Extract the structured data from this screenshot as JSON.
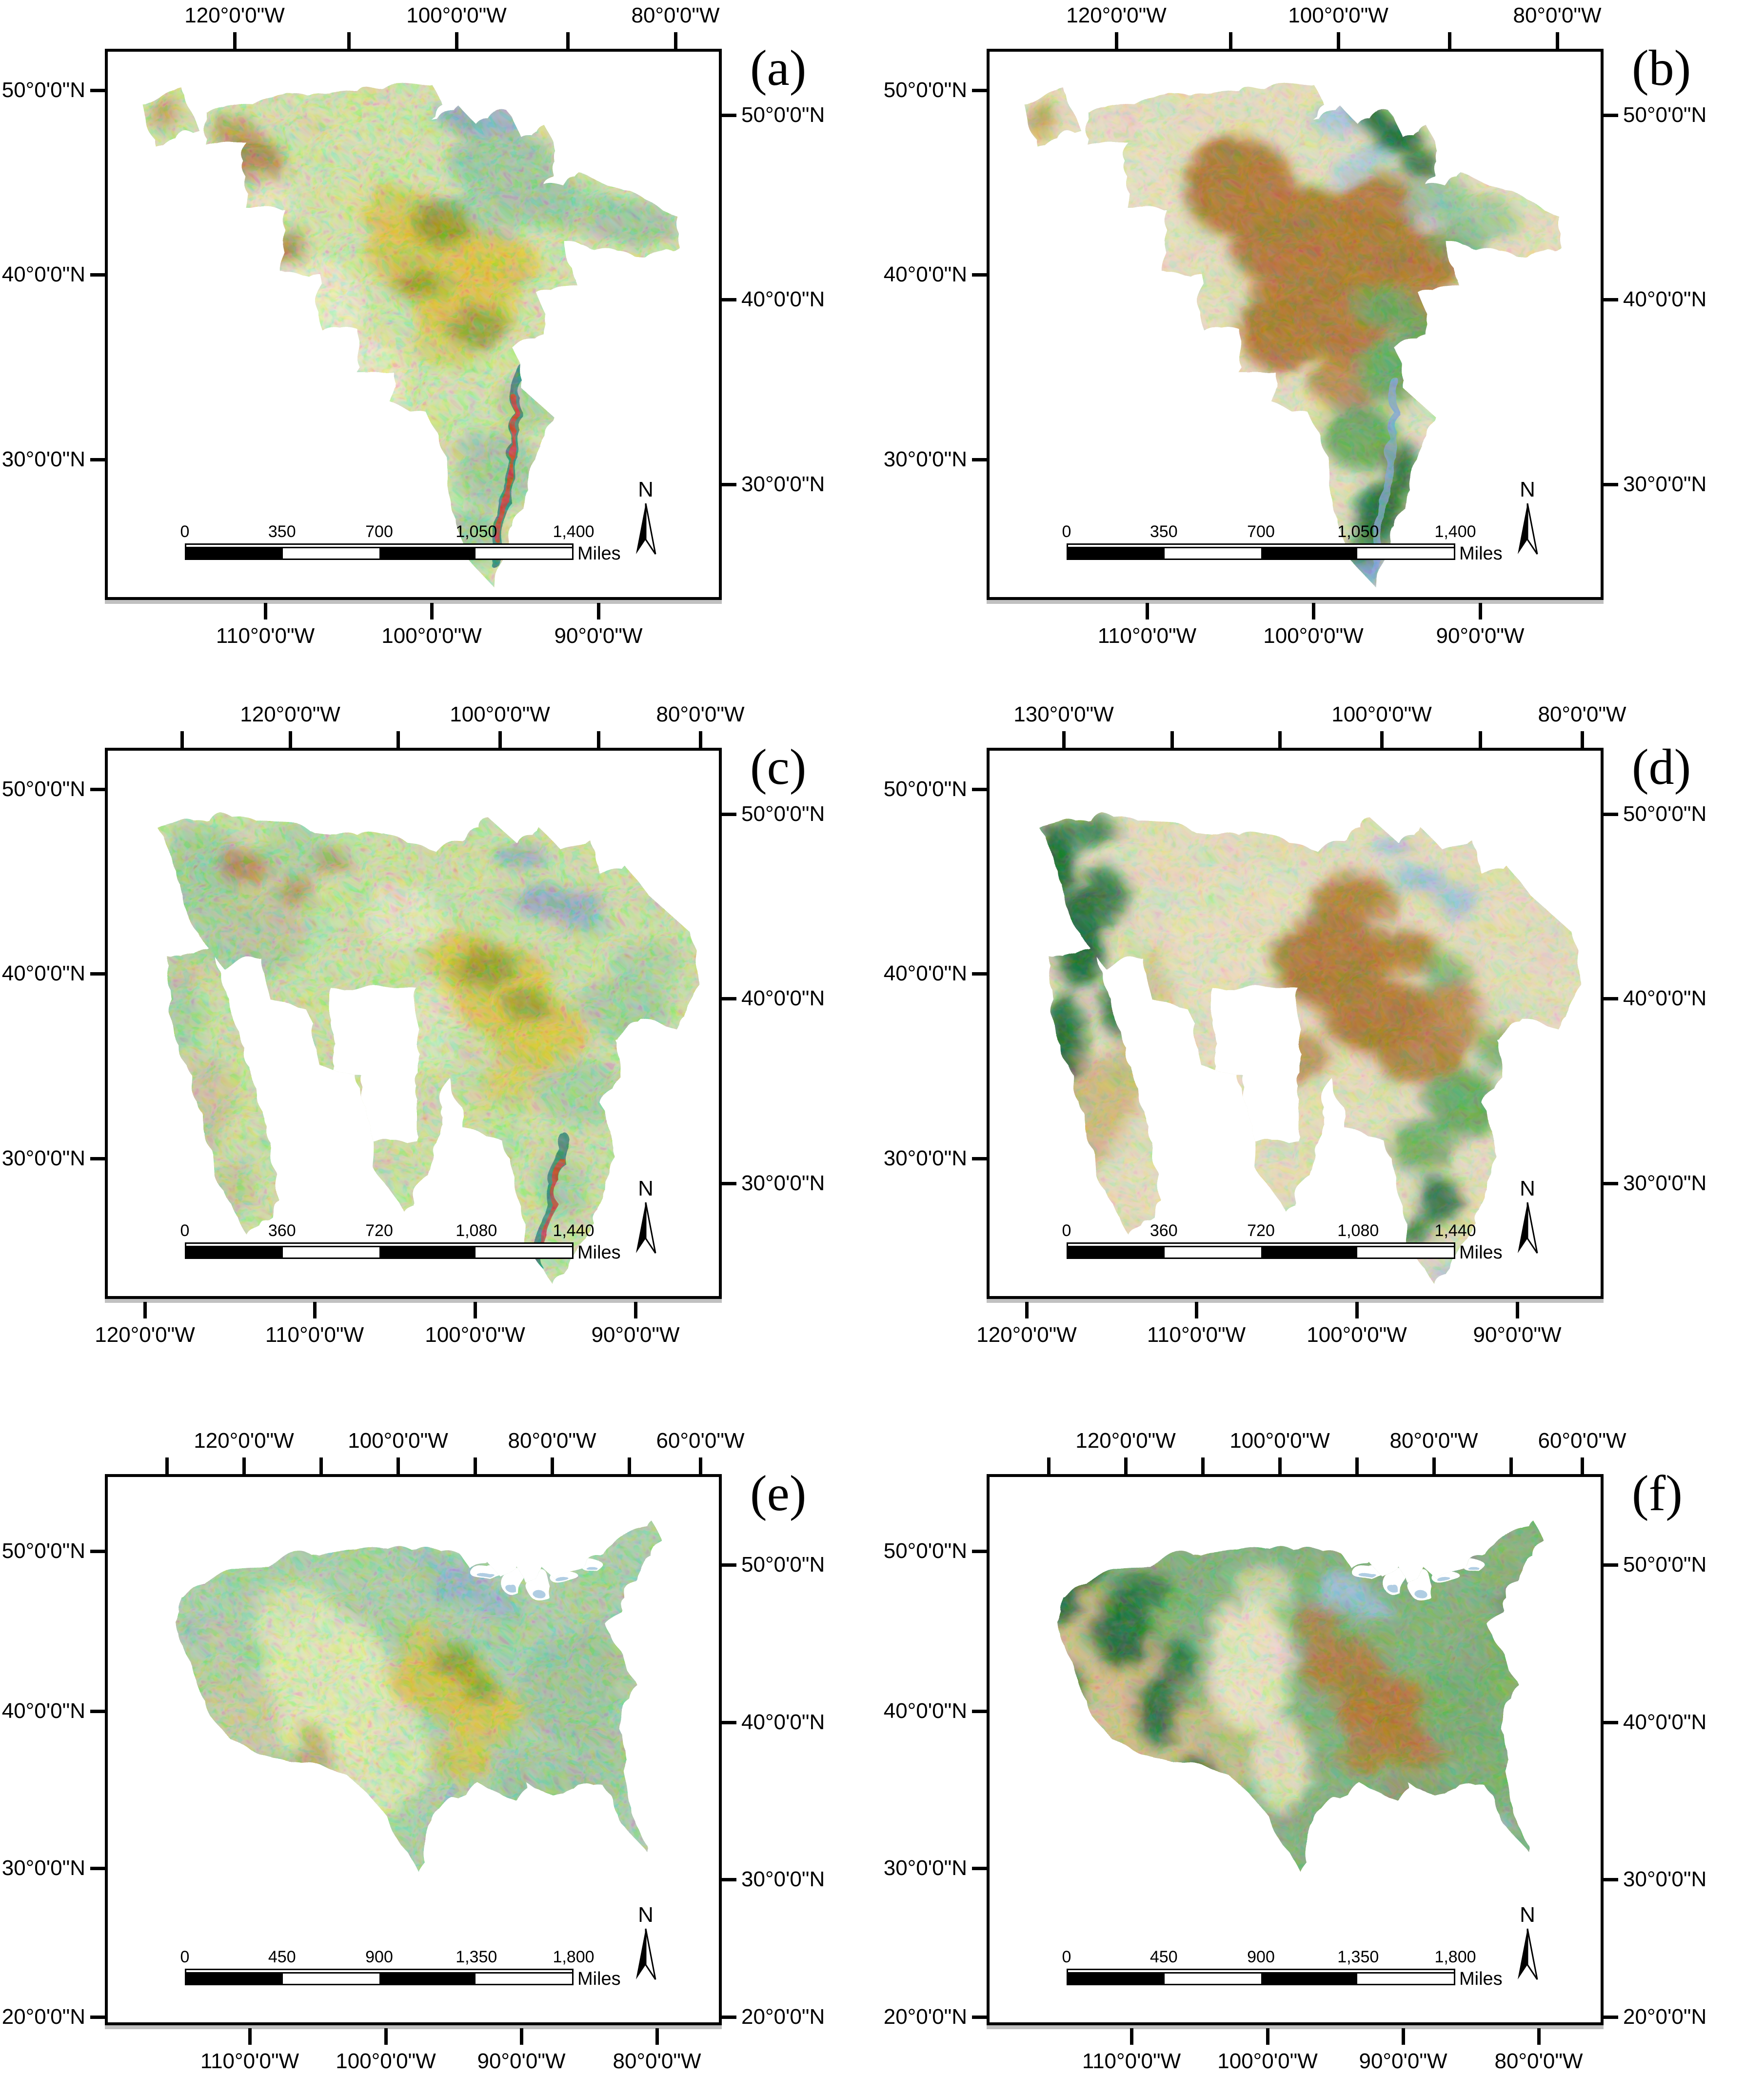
{
  "figure": {
    "background": "#ffffff"
  },
  "panels": [
    {
      "id": "a",
      "label": "(a)",
      "axes": {
        "top_labels": [
          "120°0'0\"W",
          "100°0'0\"W",
          "80°0'0\"W"
        ],
        "bottom_labels": [
          "110°0'0\"W",
          "100°0'0\"W",
          "90°0'0\"W"
        ],
        "left_labels": [
          "50°0'0\"N",
          "40°0'0\"N",
          "30°0'0\"N"
        ],
        "right_labels": [
          "50°0'0\"N",
          "40°0'0\"N",
          "30°0'0\"N"
        ]
      },
      "scalebar_ticks": [
        "0",
        "350",
        "700",
        "1,050",
        "1,400"
      ],
      "scalebar_unit": "Miles",
      "north_label": "N",
      "map_theme": {
        "base": "#d8e9a9",
        "accents": {
          "sage": "#9fcc9e",
          "yellow": "#e0c63c",
          "olive": "#8d9b26",
          "brown": "#a96f2b",
          "cream": "#eef3c8",
          "bluegray": "#8da9c4",
          "teal": "#2e7f6f",
          "red": "#d13a2e"
        }
      }
    },
    {
      "id": "b",
      "label": "(b)",
      "axes": {
        "top_labels": [
          "120°0'0\"W",
          "100°0'0\"W",
          "80°0'0\"W"
        ],
        "bottom_labels": [
          "110°0'0\"W",
          "100°0'0\"W",
          "90°0'0\"W"
        ],
        "left_labels": [
          "50°0'0\"N",
          "40°0'0\"N",
          "30°0'0\"N"
        ],
        "right_labels": [
          "50°0'0\"N",
          "40°0'0\"N",
          "30°0'0\"N"
        ]
      },
      "scalebar_ticks": [
        "0",
        "350",
        "700",
        "1,050",
        "1,400"
      ],
      "scalebar_unit": "Miles",
      "north_label": "N",
      "map_theme": {
        "base": "#e9e3bd",
        "accents": {
          "brown": "#b1772e",
          "cream": "#ece6c4",
          "green": "#67a95f",
          "darkgreen": "#1d6b34",
          "lightblue": "#a9cae2",
          "sage": "#8fc493",
          "blue": "#7da7d9",
          "red": "#e03a3a"
        }
      }
    },
    {
      "id": "c",
      "label": "(c)",
      "axes": {
        "top_labels": [
          "120°0'0\"W",
          "100°0'0\"W",
          "80°0'0\"W"
        ],
        "bottom_labels": [
          "120°0'0\"W",
          "110°0'0\"W",
          "100°0'0\"W",
          "90°0'0\"W"
        ],
        "left_labels": [
          "50°0'0\"N",
          "40°0'0\"N",
          "30°0'0\"N"
        ],
        "right_labels": [
          "50°0'0\"N",
          "40°0'0\"N",
          "30°0'0\"N"
        ]
      },
      "scalebar_ticks": [
        "0",
        "360",
        "720",
        "1,080",
        "1,440"
      ],
      "scalebar_unit": "Miles",
      "north_label": "N",
      "map_theme": {
        "base": "#cfe5a4",
        "accents": {
          "sage": "#a3cf9e",
          "tan": "#c9c795",
          "yellow": "#e0c63c",
          "olive": "#8d9b26",
          "brown": "#a96f2b",
          "bluegray": "#8da9c4",
          "cream": "#eef3c8",
          "teal": "#2e7f6f",
          "red": "#d13a2e"
        }
      }
    },
    {
      "id": "d",
      "label": "(d)",
      "axes": {
        "top_labels": [
          "130°0'0\"W",
          "100°0'0\"W",
          "80°0'0\"W"
        ],
        "bottom_labels": [
          "120°0'0\"W",
          "110°0'0\"W",
          "100°0'0\"W",
          "90°0'0\"W"
        ],
        "left_labels": [
          "50°0'0\"N",
          "40°0'0\"N",
          "30°0'0\"N"
        ],
        "right_labels": [
          "50°0'0\"N",
          "40°0'0\"N",
          "30°0'0\"N"
        ]
      },
      "scalebar_ticks": [
        "0",
        "360",
        "720",
        "1,080",
        "1,440"
      ],
      "scalebar_unit": "Miles",
      "north_label": "N",
      "map_theme": {
        "base": "#e8e2bd",
        "accents": {
          "darkgreen": "#1d6b34",
          "tan": "#d2bc80",
          "cream": "#ebe5c0",
          "brown": "#b1772e",
          "green": "#67a95f",
          "bluegray": "#9cc0dc",
          "red": "#e03a3a"
        }
      }
    },
    {
      "id": "e",
      "label": "(e)",
      "axes": {
        "top_labels": [
          "120°0'0\"W",
          "100°0'0\"W",
          "80°0'0\"W",
          "60°0'0\"W"
        ],
        "bottom_labels": [
          "110°0'0\"W",
          "100°0'0\"W",
          "90°0'0\"W",
          "80°0'0\"W"
        ],
        "left_labels": [
          "50°0'0\"N",
          "40°0'0\"N",
          "30°0'0\"N",
          "20°0'0\"N"
        ],
        "right_labels": [
          "50°0'0\"N",
          "40°0'0\"N",
          "30°0'0\"N",
          "20°0'0\"N"
        ]
      },
      "scalebar_ticks": [
        "0",
        "450",
        "900",
        "1,350",
        "1,800"
      ],
      "scalebar_unit": "Miles",
      "north_label": "N",
      "map_theme": {
        "base": "#abd4a6",
        "accents": {
          "pale": "#e3f1b4",
          "tan": "#c9cf9b",
          "yellow": "#e0c63c",
          "olive": "#8d9b26",
          "bluegray": "#8fb3c9",
          "red": "#ee2f25",
          "brown": "#b08a3e",
          "sage": "#9bc697"
        }
      }
    },
    {
      "id": "f",
      "label": "(f)",
      "axes": {
        "top_labels": [
          "120°0'0\"W",
          "100°0'0\"W",
          "80°0'0\"W",
          "60°0'0\"W"
        ],
        "bottom_labels": [
          "110°0'0\"W",
          "100°0'0\"W",
          "90°0'0\"W",
          "80°0'0\"W"
        ],
        "left_labels": [
          "50°0'0\"N",
          "40°0'0\"N",
          "30°0'0\"N",
          "20°0'0\"N"
        ],
        "right_labels": [
          "50°0'0\"N",
          "40°0'0\"N",
          "30°0'0\"N",
          "20°0'0\"N"
        ]
      },
      "scalebar_ticks": [
        "0",
        "450",
        "900",
        "1,350",
        "1,800"
      ],
      "scalebar_unit": "Miles",
      "north_label": "N",
      "map_theme": {
        "base": "#7fb277",
        "accents": {
          "tan": "#d7c289",
          "darkgreen": "#1c6b33",
          "cream": "#eee8c4",
          "brown": "#b1772e",
          "bluegray": "#9cc0dc",
          "green": "#74ad6b",
          "red": "#e8322a"
        }
      }
    }
  ]
}
